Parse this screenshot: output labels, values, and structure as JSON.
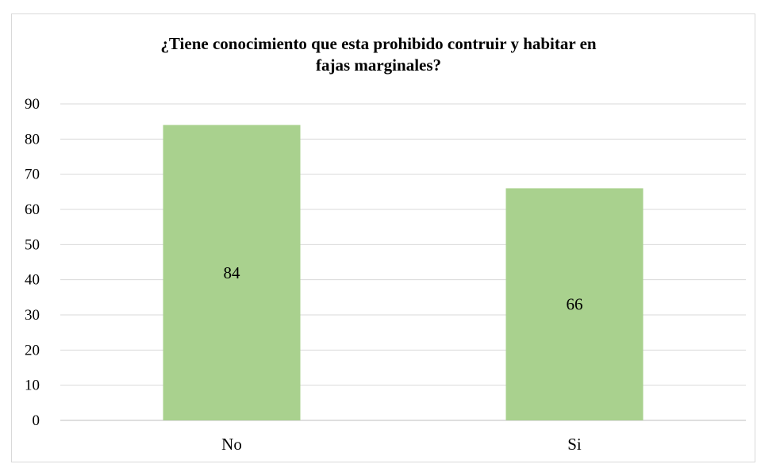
{
  "chart_data": {
    "type": "bar",
    "title_lines": [
      "¿Tiene conocimiento que esta prohibido contruir y habitar en",
      "fajas marginales?"
    ],
    "categories": [
      "No",
      "Si"
    ],
    "values": [
      84,
      66
    ],
    "ylim": [
      0,
      90
    ],
    "yticks": [
      0,
      10,
      20,
      30,
      40,
      50,
      60,
      70,
      80,
      90
    ],
    "bar_color": "#a9d18e",
    "grid": true,
    "legend": "none",
    "data_labels": true
  }
}
